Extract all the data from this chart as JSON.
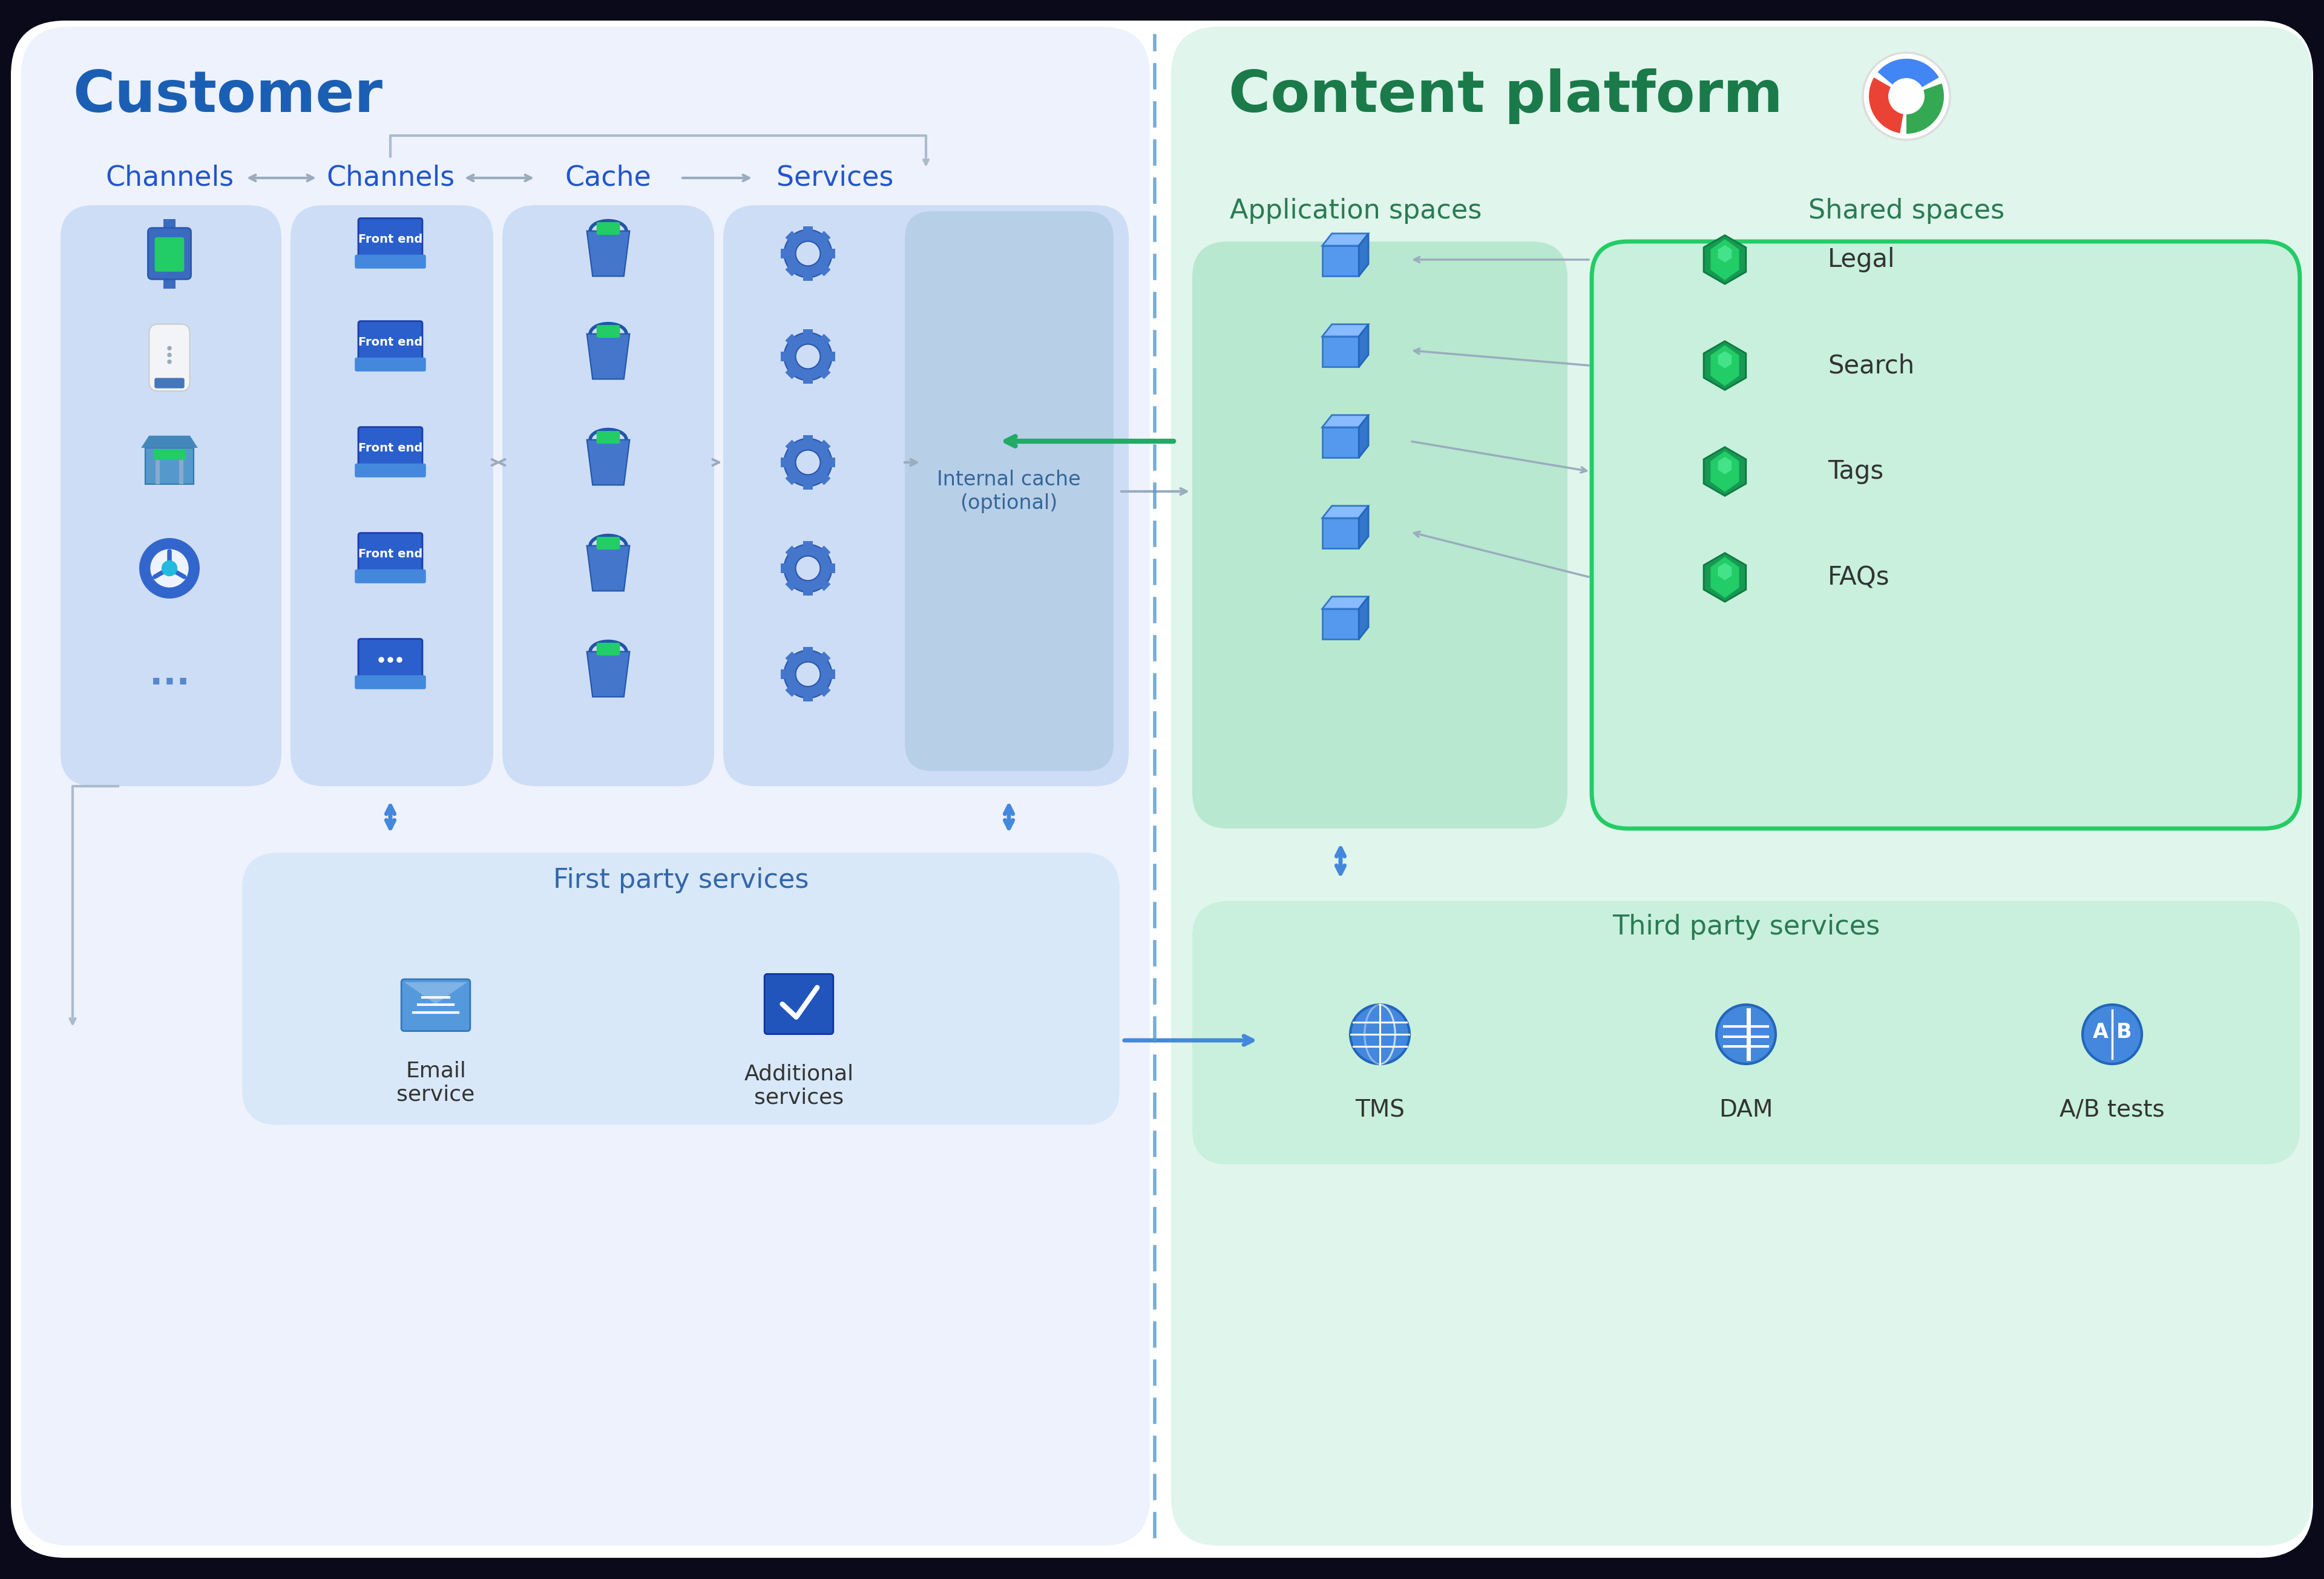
{
  "bg_outer": "#0a0a1a",
  "bg_white": "#ffffff",
  "left_bg": "#edf2fc",
  "right_bg": "#e0f5ec",
  "customer_title": "Customer",
  "content_title": "Content platform",
  "customer_color": "#1a5fb4",
  "content_color": "#1a7a4a",
  "flow_labels": [
    "Channels",
    "Channels",
    "Cache",
    "Services"
  ],
  "label_color": "#2255cc",
  "col_bg": "#cdddf5",
  "services_col_bg": "#cdddf5",
  "internal_cache_bg": "#b8cfe8",
  "first_party_bg": "#d8e8f8",
  "app_bg": "#b8e8d0",
  "shared_bg": "#c8f0dc",
  "shared_border": "#22cc66",
  "third_party_bg": "#c8f0dc",
  "arrow_gray": "#9aacbe",
  "arrow_blue": "#4488dd",
  "arrow_green": "#22aa66",
  "gear_blue": "#4477cc",
  "gear_hole": "#cdddf5",
  "cube_front": "#5599ee",
  "cube_top": "#88bbff",
  "cube_right": "#3366bb",
  "gem_dark": "#169952",
  "gem_mid": "#22bb66",
  "gem_light": "#33ee88",
  "bucket_blue": "#4477cc",
  "green_dot": "#22cc66",
  "laptop_blue": "#2255bb",
  "laptop_base": "#4488dd",
  "watch_blue": "#3366bb",
  "watch_green": "#22cc66",
  "shared_items": [
    "Legal",
    "Search",
    "Tags",
    "FAQs"
  ],
  "third_party_items": [
    "TMS",
    "DAM",
    "A/B tests"
  ],
  "first_party_title": "First party services",
  "third_party_title": "Third party services",
  "app_spaces_label": "Application spaces",
  "shared_spaces_label": "Shared spaces",
  "internal_cache_text": "Internal cache\n(optional)",
  "text_dark": "#333333",
  "text_blue": "#336699"
}
